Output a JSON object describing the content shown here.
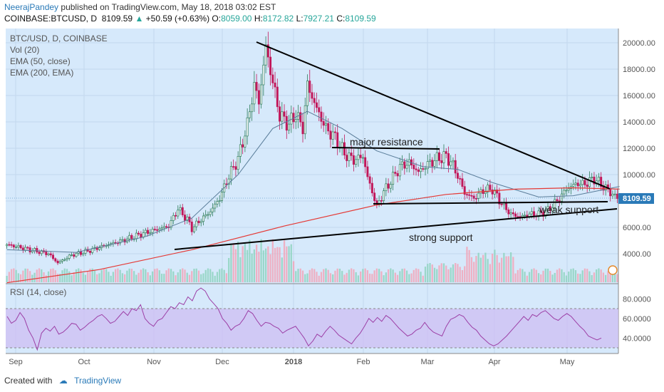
{
  "header": {
    "author": "NeerajPandey",
    "published": "published on TradingView.com, May 18, 2018 03:02 EST",
    "symbol": "COINBASE:BTCUSD, D",
    "last": "8109.59",
    "change": "+50.59 (+0.63%)",
    "open_label": "O:",
    "open": "8059.00",
    "high_label": "H:",
    "high": "8172.82",
    "low_label": "L:",
    "low": "7927.21",
    "close_label": "C:",
    "close": "8109.59"
  },
  "footer": {
    "created_with": "Created with",
    "brand": "TradingView"
  },
  "colors": {
    "bg": "#d6e9fb",
    "up": "#2e7d5b",
    "down": "#c2185b",
    "ema50": "#5a7d9a",
    "ema200": "#e53935",
    "rsi": "#9c3fa6",
    "rsi_band": "#cdbdf3"
  },
  "chart_data": [
    {
      "type": "candlestick",
      "legend": [
        "BTC/USD, D, COINBASE",
        "Vol (20)",
        "EMA (50, close)",
        "EMA (200, EMA)"
      ],
      "x_ticks": [
        "Sep",
        "Oct",
        "Nov",
        "Dec",
        "2018",
        "Feb",
        "Mar",
        "Apr",
        "May"
      ],
      "y_ticks": [
        "20000.00",
        "18000.00",
        "16000.00",
        "14000.00",
        "12000.00",
        "10000.00",
        "8000.00",
        "6000.00",
        "4000.00"
      ],
      "ylim": [
        2400,
        20800
      ],
      "last_price_label": "8109.59",
      "path_points": [
        [
          0,
          4700
        ],
        [
          10,
          4300
        ],
        [
          18,
          4000
        ],
        [
          22,
          3300
        ],
        [
          28,
          3900
        ],
        [
          35,
          4200
        ],
        [
          42,
          4600
        ],
        [
          50,
          5000
        ],
        [
          60,
          5600
        ],
        [
          66,
          5900
        ],
        [
          70,
          6100
        ],
        [
          74,
          7400
        ],
        [
          78,
          6600
        ],
        [
          80,
          5900
        ],
        [
          84,
          6600
        ],
        [
          88,
          7200
        ],
        [
          92,
          8200
        ],
        [
          96,
          9900
        ],
        [
          100,
          11200
        ],
        [
          104,
          13800
        ],
        [
          107,
          16800
        ],
        [
          109,
          15500
        ],
        [
          112,
          19700
        ],
        [
          115,
          17000
        ],
        [
          118,
          14500
        ],
        [
          122,
          13800
        ],
        [
          125,
          14600
        ],
        [
          128,
          13500
        ],
        [
          130,
          16800
        ],
        [
          134,
          15000
        ],
        [
          138,
          13500
        ],
        [
          142,
          12800
        ],
        [
          146,
          11600
        ],
        [
          150,
          11100
        ],
        [
          154,
          11400
        ],
        [
          156,
          9800
        ],
        [
          158,
          8700
        ],
        [
          160,
          7600
        ],
        [
          163,
          8700
        ],
        [
          166,
          9500
        ],
        [
          170,
          10600
        ],
        [
          174,
          10900
        ],
        [
          178,
          10200
        ],
        [
          182,
          10800
        ],
        [
          186,
          11200
        ],
        [
          190,
          11400
        ],
        [
          193,
          10700
        ],
        [
          196,
          9500
        ],
        [
          198,
          8600
        ],
        [
          202,
          8200
        ],
        [
          206,
          8800
        ],
        [
          210,
          8900
        ],
        [
          214,
          7800
        ],
        [
          218,
          7000
        ],
        [
          222,
          6800
        ],
        [
          226,
          7000
        ],
        [
          230,
          7000
        ],
        [
          234,
          7300
        ],
        [
          238,
          8000
        ],
        [
          242,
          8900
        ],
        [
          246,
          9300
        ],
        [
          250,
          9300
        ],
        [
          254,
          9700
        ],
        [
          256,
          9400
        ],
        [
          258,
          9100
        ],
        [
          262,
          8500
        ],
        [
          265,
          8100
        ]
      ],
      "ema50_points": [
        [
          0,
          4300
        ],
        [
          30,
          4100
        ],
        [
          60,
          5300
        ],
        [
          80,
          6700
        ],
        [
          100,
          10000
        ],
        [
          115,
          13500
        ],
        [
          130,
          14800
        ],
        [
          145,
          13500
        ],
        [
          160,
          11800
        ],
        [
          180,
          10600
        ],
        [
          195,
          10400
        ],
        [
          210,
          9400
        ],
        [
          230,
          8300
        ],
        [
          245,
          8400
        ],
        [
          265,
          9100
        ]
      ],
      "ema200_points": [
        [
          0,
          1800
        ],
        [
          40,
          2800
        ],
        [
          80,
          4300
        ],
        [
          120,
          6100
        ],
        [
          160,
          7700
        ],
        [
          190,
          8500
        ],
        [
          220,
          8900
        ],
        [
          245,
          9000
        ],
        [
          265,
          8900
        ]
      ],
      "volume_max": 100
    },
    {
      "type": "line",
      "legend": "RSI (14, close)",
      "y_ticks": [
        "80.0000",
        "60.0000",
        "40.0000"
      ],
      "ylim": [
        23,
        97
      ],
      "overbought": 70,
      "oversold": 30,
      "values": [
        62,
        55,
        58,
        66,
        60,
        48,
        40,
        28,
        45,
        50,
        47,
        52,
        44,
        46,
        50,
        55,
        54,
        48,
        51,
        55,
        58,
        62,
        64,
        60,
        55,
        57,
        62,
        67,
        63,
        70,
        68,
        74,
        60,
        55,
        52,
        58,
        60,
        66,
        72,
        70,
        76,
        74,
        82,
        78,
        88,
        91,
        88,
        80,
        75,
        70,
        60,
        55,
        48,
        52,
        54,
        60,
        68,
        65,
        58,
        52,
        56,
        55,
        52,
        50,
        45,
        48,
        50,
        52,
        46,
        40,
        32,
        37,
        44,
        41,
        47,
        52,
        48,
        43,
        40,
        37,
        34,
        40,
        45,
        52,
        60,
        56,
        61,
        57,
        63,
        60,
        55,
        50,
        46,
        42,
        44,
        48,
        50,
        56,
        50,
        46,
        44,
        42,
        52,
        59,
        61,
        64,
        62,
        56,
        51,
        48,
        42,
        38,
        34,
        32,
        34,
        38,
        42,
        47,
        52,
        57,
        62,
        58,
        64,
        62,
        66,
        68,
        64,
        60,
        58,
        62,
        65,
        62,
        57,
        52,
        48,
        42,
        40,
        38,
        40
      ]
    }
  ],
  "annotations": {
    "major_resistance": "major resistance",
    "strong_support": "strong support",
    "weak_support": "weak support"
  }
}
